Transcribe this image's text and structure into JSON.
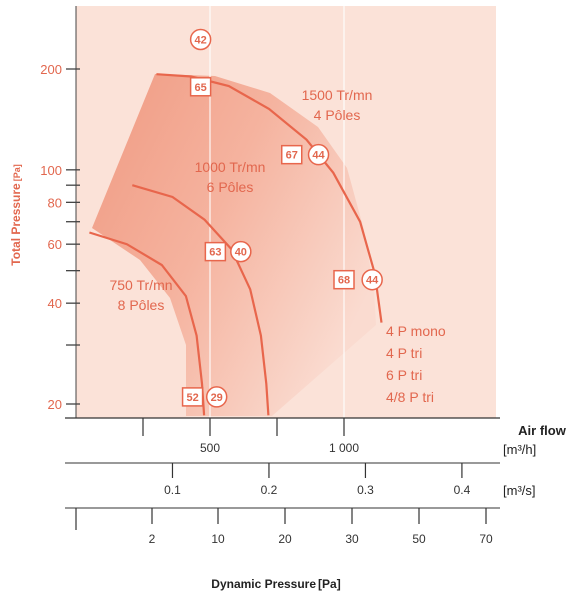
{
  "chart_data": {
    "type": "line",
    "title": "",
    "ylabel": "Total Pressure",
    "ylabel_unit": "[Pa]",
    "yscale": "log",
    "ylim": [
      18,
      300
    ],
    "y_ticks": [
      20,
      40,
      60,
      80,
      100,
      200
    ],
    "y_tick_labels": [
      "20",
      "40",
      "60",
      "80",
      "100",
      "200"
    ],
    "xlim": [
      0,
      1420
    ],
    "axis_airflow_m3h": {
      "title": "Air flow",
      "unit": "[m³/h]",
      "ticks": [
        500,
        1000
      ],
      "tick_labels": [
        "500",
        "1 000"
      ],
      "minor_ticks": [
        250,
        750
      ]
    },
    "axis_airflow_m3s": {
      "unit": "[m³/s]",
      "ticks": [
        0.1,
        0.2,
        0.3,
        0.4
      ],
      "tick_labels": [
        "0.1",
        "0.2",
        "0.3",
        "0.4"
      ]
    },
    "axis_dynamic_pressure": {
      "title": "Dynamic Pressure",
      "unit": "[Pa]",
      "ticks": [
        2,
        10,
        20,
        30,
        50,
        70
      ],
      "tick_labels": [
        "2",
        "10",
        "20",
        "30",
        "50",
        "70"
      ]
    },
    "series": [
      {
        "name": "1500 Tr/mn 4 Pôles",
        "label_lines": [
          "1500 Tr/mn",
          "4 Pôles"
        ],
        "x": [
          300,
          430,
          570,
          720,
          860,
          960,
          1060,
          1115,
          1140
        ],
        "y": [
          193,
          190,
          178,
          152,
          123,
          98,
          70,
          49,
          35
        ]
      },
      {
        "name": "1000 Tr/mn 6 Pôles",
        "label_lines": [
          "1000 Tr/mn",
          "6 Pôles"
        ],
        "x": [
          210,
          360,
          480,
          580,
          650,
          690,
          710,
          718
        ],
        "y": [
          90,
          83,
          71,
          58,
          44,
          32,
          23,
          18.5
        ]
      },
      {
        "name": "750 Tr/mn 8 Pôles",
        "label_lines": [
          "750 Tr/mn",
          "8 Pôles"
        ],
        "x": [
          50,
          190,
          320,
          410,
          450,
          470,
          478
        ],
        "y": [
          65,
          60,
          52,
          42,
          32,
          23,
          18.5
        ]
      }
    ],
    "motor_types": [
      "4 P mono",
      "4 P tri",
      "6 P tri",
      "4/8 P tri"
    ],
    "badges": [
      {
        "shape": "circle",
        "text": "42",
        "x": 465,
        "y": 245
      },
      {
        "shape": "square",
        "text": "65",
        "x": 465,
        "y": 177
      },
      {
        "shape": "square",
        "text": "67",
        "x": 805,
        "y": 111
      },
      {
        "shape": "circle",
        "text": "44",
        "x": 905,
        "y": 111
      },
      {
        "shape": "square",
        "text": "63",
        "x": 520,
        "y": 57
      },
      {
        "shape": "circle",
        "text": "40",
        "x": 615,
        "y": 57
      },
      {
        "shape": "square",
        "text": "68",
        "x": 1000,
        "y": 47
      },
      {
        "shape": "circle",
        "text": "44",
        "x": 1105,
        "y": 47
      },
      {
        "shape": "square",
        "text": "52",
        "x": 435,
        "y": 21
      },
      {
        "shape": "circle",
        "text": "29",
        "x": 525,
        "y": 21
      }
    ]
  }
}
